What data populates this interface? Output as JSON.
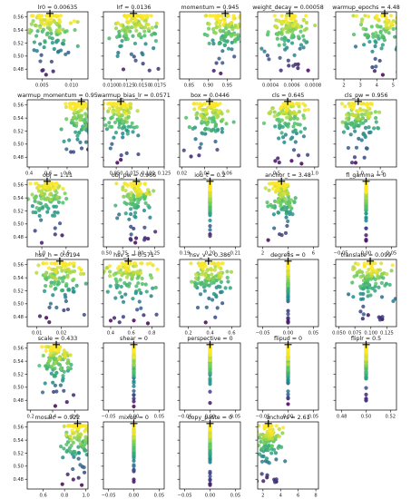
{
  "chart_data": {
    "type": "scatter",
    "figure": "hyperparameter evolution grid",
    "grid": false,
    "colormap": [
      "#440154",
      "#3b528b",
      "#21918c",
      "#5ec962",
      "#fde725"
    ],
    "marker_color": "#000000",
    "y_ticks": [
      0.48,
      0.5,
      0.52,
      0.54,
      0.56
    ],
    "ylim": [
      0.465,
      0.568
    ],
    "panels": [
      {
        "title": "lr0 = 0.00635",
        "best": 0.00635,
        "xlim": [
          0.0025,
          0.0128
        ],
        "xticks": [
          0.005,
          0.01
        ],
        "xtick_labels": [
          "0.005",
          "0.010"
        ],
        "spread": 0.18
      },
      {
        "title": "lrf = 0.0136",
        "best": 0.0136,
        "xlim": [
          0.0088,
          0.0185
        ],
        "xticks": [
          0.01,
          0.0125,
          0.015,
          0.0175
        ],
        "xtick_labels": [
          "0.0100",
          "0.0125",
          "0.0150",
          "0.0175"
        ],
        "spread": 0.16
      },
      {
        "title": "momentum = 0.945",
        "best": 0.945,
        "xlim": [
          0.825,
          0.985
        ],
        "xticks": [
          0.85,
          0.9,
          0.95
        ],
        "xtick_labels": [
          "0.85",
          "0.90",
          "0.95"
        ],
        "spread": 0.14
      },
      {
        "title": "weight_decay = 0.00058",
        "best": 0.00058,
        "xlim": [
          0.00028,
          0.00085
        ],
        "xticks": [
          0.0004,
          0.0006,
          0.0008
        ],
        "xtick_labels": [
          "0.0004",
          "0.0006",
          "0.0008"
        ],
        "spread": 0.15
      },
      {
        "title": "warmup_epochs = 4.48",
        "best": 4.48,
        "xlim": [
          1.5,
          5.2
        ],
        "xticks": [
          2,
          3,
          4,
          5
        ],
        "xtick_labels": [
          "2",
          "3",
          "4",
          "5"
        ],
        "spread": 0.2
      },
      {
        "title": "warmup_momentum = 0.95",
        "best": 0.95,
        "xlim": [
          0.38,
          1.02
        ],
        "xticks": [
          0.4,
          0.6,
          0.8
        ],
        "xtick_labels": [
          "0.4",
          "0.6",
          "0.8"
        ],
        "spread": 0.12
      },
      {
        "title": "warmup_bias_lr = 0.0571",
        "best": 0.0571,
        "xlim": [
          0.03,
          0.125
        ],
        "xticks": [
          0.05,
          0.075,
          0.1,
          0.125
        ],
        "xtick_labels": [
          "0.050",
          "0.075",
          "0.100",
          "0.125"
        ],
        "spread": 0.14
      },
      {
        "title": "box = 0.0446",
        "best": 0.0446,
        "xlim": [
          0.018,
          0.072
        ],
        "xticks": [
          0.02,
          0.04,
          0.06
        ],
        "xtick_labels": [
          "0.02",
          "0.04",
          "0.06"
        ],
        "spread": 0.14
      },
      {
        "title": "cls = 0.645",
        "best": 0.645,
        "xlim": [
          0.25,
          1.05
        ],
        "xticks": [
          0.5,
          1.0
        ],
        "xtick_labels": [
          "0.5",
          "1.0"
        ],
        "spread": 0.12
      },
      {
        "title": "cls_pw = 0.956",
        "best": 0.956,
        "xlim": [
          0.4,
          1.9
        ],
        "xticks": [
          1.0,
          1.5
        ],
        "xtick_labels": [
          "1.0",
          "1.5"
        ],
        "spread": 0.12
      },
      {
        "title": "obj = 1.11",
        "best": 1.11,
        "xlim": [
          0.7,
          1.95
        ],
        "xticks": [
          1.0,
          1.5
        ],
        "xtick_labels": [
          "1.0",
          "1.5"
        ],
        "spread": 0.12
      },
      {
        "title": "obj_pw = 0.966",
        "best": 0.966,
        "xlim": [
          0.45,
          1.4
        ],
        "xticks": [
          0.5,
          0.75,
          1.0,
          1.25
        ],
        "xtick_labels": [
          "0.50",
          "0.75",
          "1.00",
          "1.25"
        ],
        "spread": 0.12
      },
      {
        "title": "iou_t = 0.2",
        "best": 0.2,
        "xlim": [
          0.188,
          0.212
        ],
        "xticks": [
          0.19,
          0.2,
          0.21
        ],
        "xtick_labels": [
          "0.19",
          "0.20",
          "0.21"
        ],
        "spread": 0
      },
      {
        "title": "anchor_t = 3.48",
        "best": 3.48,
        "xlim": [
          1.6,
          6.4
        ],
        "xticks": [
          2,
          4,
          6
        ],
        "xtick_labels": [
          "2",
          "4",
          "6"
        ],
        "spread": 0.1
      },
      {
        "title": "fl_gamma = 0",
        "best": 0,
        "xlim": [
          -0.06,
          0.06
        ],
        "xticks": [
          -0.05,
          0.0,
          0.05
        ],
        "xtick_labels": [
          "−0.05",
          "0.00",
          "0.05"
        ],
        "spread": 0
      },
      {
        "title": "hsv_h = 0.0194",
        "best": 0.0194,
        "xlim": [
          0.006,
          0.031
        ],
        "xticks": [
          0.01,
          0.02
        ],
        "xtick_labels": [
          "0.01",
          "0.02"
        ],
        "spread": 0.15
      },
      {
        "title": "hsv_s = 0.571",
        "best": 0.571,
        "xlim": [
          0.33,
          0.92
        ],
        "xticks": [
          0.4,
          0.6,
          0.8
        ],
        "xtick_labels": [
          "0.4",
          "0.6",
          "0.8"
        ],
        "spread": 0.17
      },
      {
        "title": "hsv_v = 0.386",
        "best": 0.386,
        "xlim": [
          0.12,
          0.68
        ],
        "xticks": [
          0.2,
          0.4,
          0.6
        ],
        "xtick_labels": [
          "0.2",
          "0.4",
          "0.6"
        ],
        "spread": 0.13
      },
      {
        "title": "degrees = 0",
        "best": 0,
        "xlim": [
          -0.06,
          0.06
        ],
        "xticks": [
          -0.05,
          0.0,
          0.05
        ],
        "xtick_labels": [
          "−0.05",
          "0.00",
          "0.05"
        ],
        "spread": 0
      },
      {
        "title": "translate = 0.099",
        "best": 0.099,
        "xlim": [
          0.045,
          0.14
        ],
        "xticks": [
          0.05,
          0.075,
          0.1,
          0.125
        ],
        "xtick_labels": [
          "0.050",
          "0.075",
          "0.100",
          "0.125"
        ],
        "spread": 0.15
      },
      {
        "title": "scale = 0.433",
        "best": 0.433,
        "xlim": [
          0.17,
          0.72
        ],
        "xticks": [
          0.2,
          0.4,
          0.6
        ],
        "xtick_labels": [
          "0.2",
          "0.4",
          "0.6"
        ],
        "spread": 0.11
      },
      {
        "title": "shear = 0",
        "best": 0,
        "xlim": [
          -0.06,
          0.06
        ],
        "xticks": [
          -0.05,
          0.0,
          0.05
        ],
        "xtick_labels": [
          "−0.05",
          "0.00",
          "0.05"
        ],
        "spread": 0
      },
      {
        "title": "perspective = 0",
        "best": 0,
        "xlim": [
          -0.06,
          0.06
        ],
        "xticks": [
          -0.05,
          0.0,
          0.05
        ],
        "xtick_labels": [
          "−0.05",
          "0.00",
          "0.05"
        ],
        "spread": 0
      },
      {
        "title": "flipud = 0",
        "best": 0,
        "xlim": [
          -0.06,
          0.06
        ],
        "xticks": [
          -0.05,
          0.0,
          0.05
        ],
        "xtick_labels": [
          "−0.05",
          "0.00",
          "0.05"
        ],
        "spread": 0
      },
      {
        "title": "fliplr = 0.5",
        "best": 0.5,
        "xlim": [
          0.475,
          0.525
        ],
        "xticks": [
          0.48,
          0.5,
          0.52
        ],
        "xtick_labels": [
          "0.48",
          "0.50",
          "0.52"
        ],
        "spread": 0
      },
      {
        "title": "mosaic = 0.922",
        "best": 0.922,
        "xlim": [
          0.45,
          1.02
        ],
        "xticks": [
          0.6,
          0.8,
          1.0
        ],
        "xtick_labels": [
          "0.6",
          "0.8",
          "1.0"
        ],
        "spread": 0.12
      },
      {
        "title": "mixup = 0",
        "best": 0,
        "xlim": [
          -0.06,
          0.06
        ],
        "xticks": [
          -0.05,
          0.0,
          0.05
        ],
        "xtick_labels": [
          "−0.05",
          "0.00",
          "0.05"
        ],
        "spread": 0
      },
      {
        "title": "copy_paste = 0",
        "best": 0,
        "xlim": [
          -0.06,
          0.06
        ],
        "xticks": [
          -0.05,
          0.0,
          0.05
        ],
        "xtick_labels": [
          "−0.05",
          "0.00",
          "0.05"
        ],
        "spread": 0
      },
      {
        "title": "anchors = 2.61",
        "best": 2.61,
        "xlim": [
          1.4,
          8.3
        ],
        "xticks": [
          2,
          4,
          6,
          8
        ],
        "xtick_labels": [
          "2",
          "4",
          "6",
          "8"
        ],
        "spread": 0.1
      }
    ]
  }
}
